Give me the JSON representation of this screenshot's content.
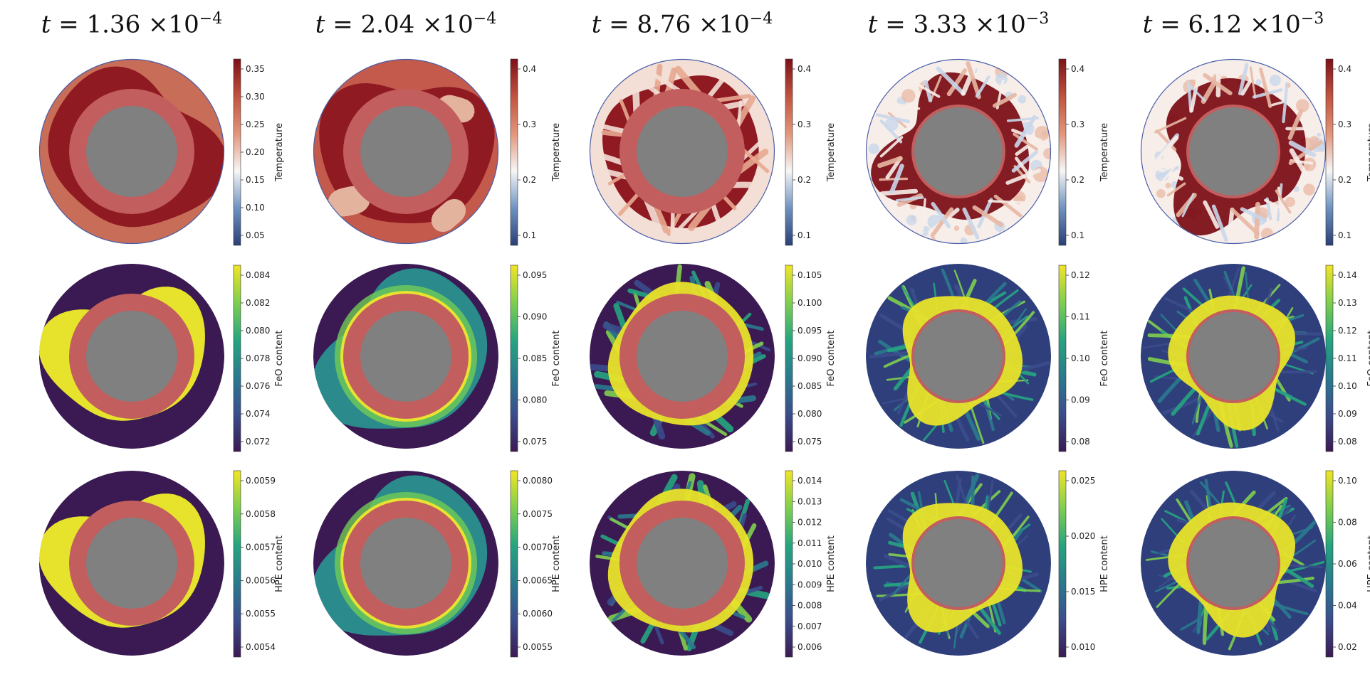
{
  "columns": [
    {
      "t_value": "1.36",
      "t_exp": "−4",
      "rows": [
        {
          "variable": "Temperature",
          "ticks": [
            "0.35",
            "0.30",
            "0.25",
            "0.20",
            "0.15",
            "0.10",
            "0.05"
          ]
        },
        {
          "variable": "FeO content",
          "ticks": [
            "0.084",
            "0.082",
            "0.080",
            "0.078",
            "0.076",
            "0.074",
            "0.072"
          ]
        },
        {
          "variable": "HPE content",
          "ticks": [
            "0.0059",
            "0.0058",
            "0.0057",
            "0.0056",
            "0.0055",
            "0.0054"
          ]
        }
      ]
    },
    {
      "t_value": "2.04",
      "t_exp": "−4",
      "rows": [
        {
          "variable": "Temperature",
          "ticks": [
            "0.4",
            "0.3",
            "0.2",
            "0.1"
          ]
        },
        {
          "variable": "FeO content",
          "ticks": [
            "0.095",
            "0.090",
            "0.085",
            "0.080",
            "0.075"
          ]
        },
        {
          "variable": "HPE content",
          "ticks": [
            "0.0080",
            "0.0075",
            "0.0070",
            "0.0065",
            "0.0060",
            "0.0055"
          ]
        }
      ]
    },
    {
      "t_value": "8.76",
      "t_exp": "−4",
      "rows": [
        {
          "variable": "Temperature",
          "ticks": [
            "0.4",
            "0.3",
            "0.2",
            "0.1"
          ]
        },
        {
          "variable": "FeO content",
          "ticks": [
            "0.105",
            "0.100",
            "0.095",
            "0.090",
            "0.085",
            "0.080",
            "0.075"
          ]
        },
        {
          "variable": "HPE content",
          "ticks": [
            "0.014",
            "0.013",
            "0.012",
            "0.011",
            "0.010",
            "0.009",
            "0.008",
            "0.007",
            "0.006"
          ]
        }
      ]
    },
    {
      "t_value": "3.33",
      "t_exp": "−3",
      "rows": [
        {
          "variable": "Temperature",
          "ticks": [
            "0.4",
            "0.3",
            "0.2",
            "0.1"
          ]
        },
        {
          "variable": "FeO content",
          "ticks": [
            "0.12",
            "0.11",
            "0.10",
            "0.09",
            "0.08"
          ]
        },
        {
          "variable": "HPE content",
          "ticks": [
            "0.025",
            "0.020",
            "0.015",
            "0.010"
          ]
        }
      ]
    },
    {
      "t_value": "6.12",
      "t_exp": "−3",
      "rows": [
        {
          "variable": "Temperature",
          "ticks": [
            "0.4",
            "0.3",
            "0.2",
            "0.1"
          ]
        },
        {
          "variable": "FeO content",
          "ticks": [
            "0.14",
            "0.13",
            "0.12",
            "0.11",
            "0.10",
            "0.09",
            "0.08"
          ]
        },
        {
          "variable": "HPE content",
          "ticks": [
            "0.10",
            "0.08",
            "0.06",
            "0.04",
            "0.02"
          ]
        }
      ]
    }
  ],
  "colors": {
    "core": "#808080",
    "lower_layer": "#c25e5e",
    "temperature_colormap": [
      "#2b3f76",
      "#6f93c0",
      "#f6f6f6",
      "#e2957a",
      "#c1533f",
      "#7d1018"
    ],
    "composition_colormap": [
      "#3b1a53",
      "#3b4d8c",
      "#2a7a8e",
      "#26a57f",
      "#7fcf4e",
      "#f2e426"
    ],
    "rim": "#4a5ea8"
  }
}
